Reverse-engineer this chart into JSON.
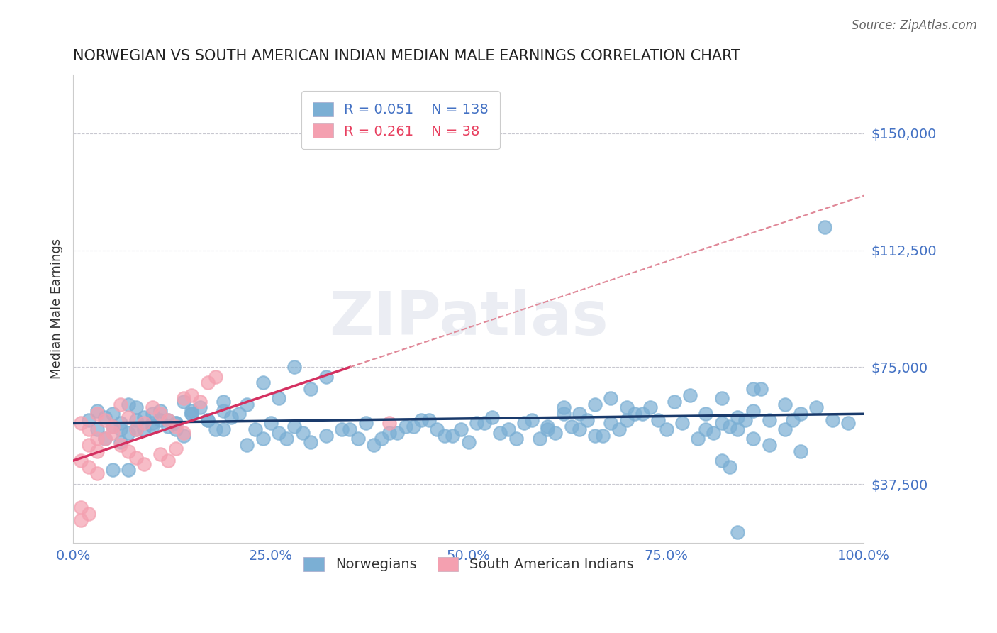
{
  "title": "NORWEGIAN VS SOUTH AMERICAN INDIAN MEDIAN MALE EARNINGS CORRELATION CHART",
  "source_text": "Source: ZipAtlas.com",
  "xlabel": "",
  "ylabel": "Median Male Earnings",
  "watermark": "ZIPatlas",
  "xlim": [
    0.0,
    1.0
  ],
  "ylim": [
    18750,
    168750
  ],
  "yticks": [
    37500,
    75000,
    112500,
    150000
  ],
  "ytick_labels": [
    "$37,500",
    "$75,000",
    "$112,500",
    "$150,000"
  ],
  "xtick_labels": [
    "0.0%",
    "25.0%",
    "50.0%",
    "75.0%",
    "100.0%"
  ],
  "xticks": [
    0.0,
    0.25,
    0.5,
    0.75,
    1.0
  ],
  "blue_R": 0.051,
  "blue_N": 138,
  "pink_R": 0.261,
  "pink_N": 38,
  "background_color": "#ffffff",
  "blue_color": "#7bafd4",
  "pink_color": "#f4a0b0",
  "blue_line_color": "#1a3a6b",
  "pink_line_color": "#d43060",
  "pink_dashed_color": "#e08898",
  "grid_color": "#c8c8d0",
  "title_color": "#222222",
  "axis_label_color": "#333333",
  "tick_color": "#4472c4",
  "right_tick_color": "#4472c4",
  "legend_R_color": "#4472c4",
  "legend_N_color": "#e84060",
  "blue_scatter_x": [
    0.02,
    0.03,
    0.04,
    0.05,
    0.06,
    0.07,
    0.08,
    0.09,
    0.1,
    0.11,
    0.12,
    0.13,
    0.14,
    0.15,
    0.07,
    0.08,
    0.09,
    0.1,
    0.06,
    0.05,
    0.04,
    0.03,
    0.13,
    0.14,
    0.15,
    0.16,
    0.17,
    0.18,
    0.19,
    0.2,
    0.22,
    0.24,
    0.26,
    0.28,
    0.3,
    0.32,
    0.34,
    0.36,
    0.38,
    0.4,
    0.42,
    0.44,
    0.46,
    0.48,
    0.5,
    0.52,
    0.54,
    0.56,
    0.58,
    0.6,
    0.62,
    0.64,
    0.66,
    0.68,
    0.7,
    0.72,
    0.74,
    0.76,
    0.78,
    0.8,
    0.82,
    0.84,
    0.86,
    0.88,
    0.9,
    0.92,
    0.94,
    0.96,
    0.98,
    0.35,
    0.37,
    0.39,
    0.41,
    0.43,
    0.45,
    0.47,
    0.49,
    0.51,
    0.53,
    0.55,
    0.57,
    0.59,
    0.61,
    0.63,
    0.65,
    0.67,
    0.69,
    0.71,
    0.73,
    0.75,
    0.77,
    0.79,
    0.81,
    0.83,
    0.85,
    0.87,
    0.22,
    0.24,
    0.26,
    0.28,
    0.3,
    0.32,
    0.15,
    0.17,
    0.19,
    0.21,
    0.23,
    0.25,
    0.27,
    0.29,
    0.1,
    0.11,
    0.12,
    0.13,
    0.6,
    0.62,
    0.64,
    0.66,
    0.68,
    0.7,
    0.8,
    0.82,
    0.84,
    0.86,
    0.88,
    0.9,
    0.91,
    0.95,
    0.92,
    0.82,
    0.83,
    0.84,
    0.86,
    0.19,
    0.05,
    0.06,
    0.07,
    0.08
  ],
  "blue_scatter_y": [
    58000,
    55000,
    52000,
    60000,
    57000,
    54000,
    62000,
    59000,
    56000,
    61000,
    58000,
    55000,
    53000,
    60000,
    63000,
    58000,
    55000,
    57000,
    51000,
    56000,
    59000,
    61000,
    57000,
    64000,
    60000,
    62000,
    58000,
    55000,
    61000,
    59000,
    50000,
    52000,
    54000,
    56000,
    51000,
    53000,
    55000,
    52000,
    50000,
    54000,
    56000,
    58000,
    55000,
    53000,
    51000,
    57000,
    54000,
    52000,
    58000,
    56000,
    60000,
    55000,
    53000,
    57000,
    62000,
    60000,
    58000,
    64000,
    66000,
    55000,
    57000,
    59000,
    61000,
    58000,
    63000,
    60000,
    62000,
    58000,
    57000,
    55000,
    57000,
    52000,
    54000,
    56000,
    58000,
    53000,
    55000,
    57000,
    59000,
    55000,
    57000,
    52000,
    54000,
    56000,
    58000,
    53000,
    55000,
    60000,
    62000,
    55000,
    57000,
    52000,
    54000,
    56000,
    58000,
    68000,
    63000,
    70000,
    65000,
    75000,
    68000,
    72000,
    61000,
    58000,
    64000,
    60000,
    55000,
    57000,
    52000,
    54000,
    60000,
    58000,
    56000,
    57000,
    55000,
    62000,
    60000,
    63000,
    65000,
    58000,
    60000,
    65000,
    55000,
    68000,
    50000,
    55000,
    58000,
    120000,
    48000,
    45000,
    43000,
    22000,
    52000,
    55000,
    42000,
    55000,
    42000,
    55000
  ],
  "pink_scatter_x": [
    0.01,
    0.02,
    0.03,
    0.03,
    0.04,
    0.05,
    0.06,
    0.07,
    0.08,
    0.09,
    0.1,
    0.11,
    0.12,
    0.13,
    0.14,
    0.15,
    0.16,
    0.17,
    0.18,
    0.02,
    0.03,
    0.04,
    0.05,
    0.06,
    0.07,
    0.08,
    0.09,
    0.01,
    0.02,
    0.03,
    0.11,
    0.12,
    0.13,
    0.14,
    0.01,
    0.02,
    0.4,
    0.01
  ],
  "pink_scatter_y": [
    57000,
    55000,
    60000,
    52000,
    58000,
    56000,
    63000,
    59000,
    55000,
    57000,
    62000,
    60000,
    58000,
    56000,
    54000,
    66000,
    64000,
    70000,
    72000,
    50000,
    48000,
    52000,
    54000,
    50000,
    48000,
    46000,
    44000,
    45000,
    43000,
    41000,
    47000,
    45000,
    49000,
    65000,
    30000,
    28000,
    57000,
    26000
  ],
  "blue_trend_x": [
    0.0,
    1.0
  ],
  "blue_trend_y": [
    57000,
    60000
  ],
  "pink_solid_trend_x": [
    0.0,
    0.35
  ],
  "pink_solid_trend_y": [
    45000,
    75000
  ],
  "pink_dashed_trend_x": [
    0.35,
    1.0
  ],
  "pink_dashed_trend_y": [
    75000,
    130000
  ]
}
